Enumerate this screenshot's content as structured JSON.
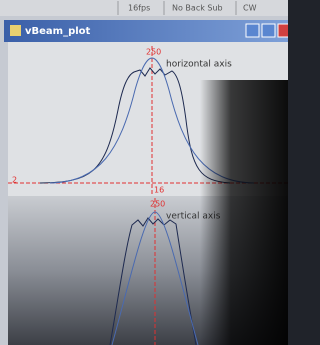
{
  "status_bar": {
    "fields": [
      "16fps",
      "No Back Sub",
      "CW"
    ]
  },
  "window": {
    "title": "vBeam_plot"
  },
  "plots": [
    {
      "top_label": "250",
      "axis_label": "horizontal axis",
      "left_label": "2",
      "bottom_label": "16"
    },
    {
      "top_label": "250",
      "axis_label": "vertical axis"
    }
  ]
}
